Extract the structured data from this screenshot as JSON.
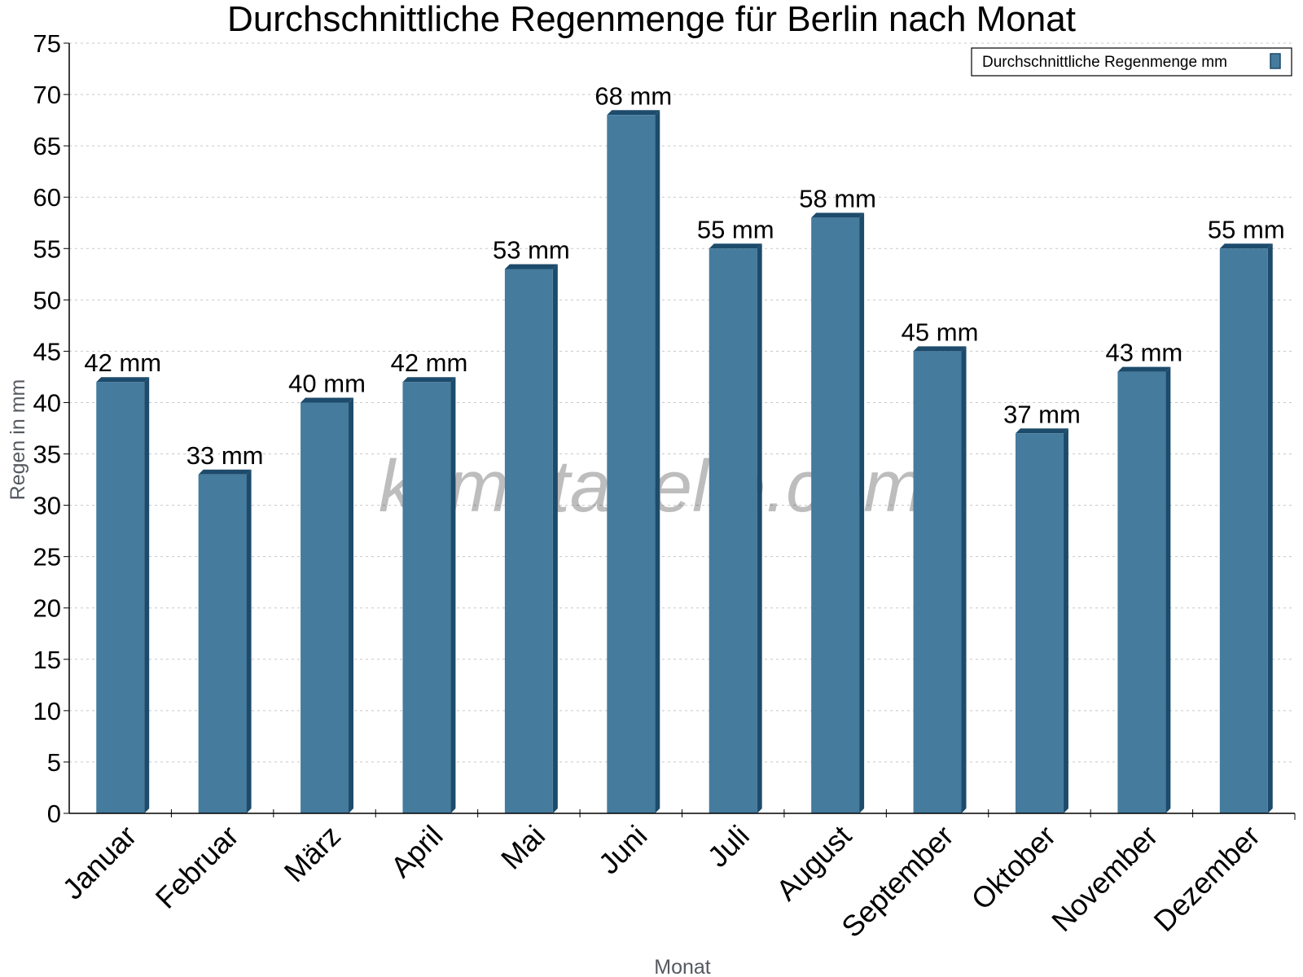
{
  "chart_data": {
    "type": "bar",
    "title": "Durchschnittliche Regenmenge für Berlin nach Monat",
    "xlabel": "Monat",
    "ylabel": "Regen in mm",
    "categories": [
      "Januar",
      "Februar",
      "März",
      "April",
      "Mai",
      "Juni",
      "Juli",
      "August",
      "September",
      "Oktober",
      "November",
      "Dezember"
    ],
    "series": [
      {
        "name": "Durchschnittliche Regenmenge mm",
        "values": [
          42,
          33,
          40,
          42,
          53,
          68,
          55,
          58,
          45,
          37,
          43,
          55
        ],
        "color": "#457b9d",
        "edge_color": "#1d4b6b"
      }
    ],
    "value_labels": [
      "42 mm",
      "33 mm",
      "40 mm",
      "42 mm",
      "53 mm",
      "68 mm",
      "55 mm",
      "58 mm",
      "45 mm",
      "37 mm",
      "43 mm",
      "55 mm"
    ],
    "ylim": [
      0,
      75
    ],
    "yticks": [
      0,
      5,
      10,
      15,
      20,
      25,
      30,
      35,
      40,
      45,
      50,
      55,
      60,
      65,
      70,
      75
    ],
    "grid": true,
    "legend_position": "top-right",
    "watermark": "klimatabelle.com"
  }
}
